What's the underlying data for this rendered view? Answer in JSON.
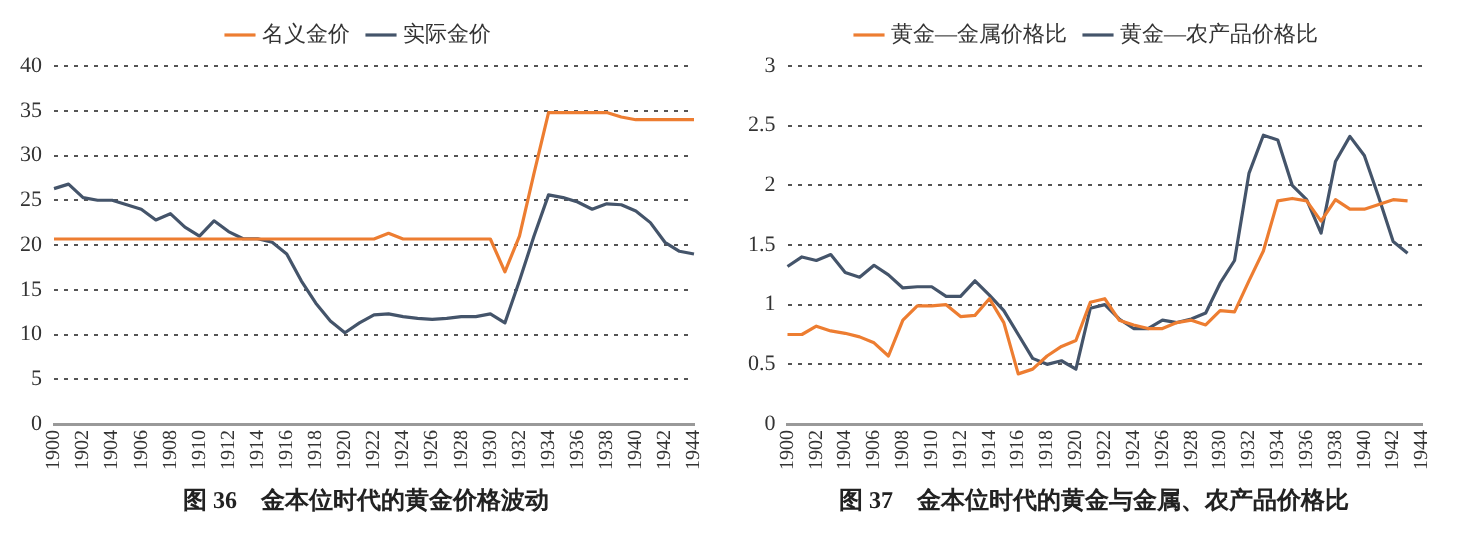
{
  "chart_data": [
    {
      "type": "line",
      "title": "图 36　金本位时代的黄金价格波动",
      "categories": [
        "1900",
        null,
        "1902",
        null,
        "1904",
        null,
        "1906",
        null,
        "1908",
        null,
        "1910",
        null,
        "1912",
        null,
        "1914",
        null,
        "1916",
        null,
        "1918",
        null,
        "1920",
        null,
        "1922",
        null,
        "1924",
        null,
        "1926",
        null,
        "1928",
        null,
        "1930",
        null,
        "1932",
        null,
        "1934",
        null,
        "1936",
        null,
        "1938",
        null,
        "1940",
        null,
        "1942",
        null,
        "1944"
      ],
      "series": [
        {
          "name": "名义金价",
          "color": "#ed7d31",
          "values": [
            20.67,
            20.67,
            20.67,
            20.67,
            20.67,
            20.67,
            20.67,
            20.67,
            20.67,
            20.67,
            20.67,
            20.67,
            20.67,
            20.67,
            20.67,
            20.67,
            20.67,
            20.67,
            20.67,
            20.67,
            20.67,
            20.67,
            20.67,
            21.3,
            20.67,
            20.67,
            20.67,
            20.67,
            20.67,
            20.67,
            20.67,
            17,
            21,
            28,
            34.8,
            34.8,
            34.8,
            34.8,
            34.8,
            34.3,
            34,
            34,
            34,
            34,
            34
          ]
        },
        {
          "name": "实际金价",
          "color": "#44546a",
          "values": [
            26.3,
            26.8,
            25.3,
            25,
            25,
            24.5,
            24,
            22.8,
            23.5,
            22,
            21,
            22.7,
            21.5,
            20.7,
            20.7,
            20.3,
            19,
            16,
            13.5,
            11.5,
            10.2,
            11.3,
            12.2,
            12.3,
            12,
            11.8,
            11.7,
            11.8,
            12,
            12,
            12.3,
            11.3,
            16,
            21,
            25.6,
            25.3,
            24.8,
            24,
            24.6,
            24.5,
            23.8,
            22.5,
            20.3,
            19.3,
            19
          ]
        }
      ],
      "ylim": [
        0,
        40
      ],
      "yticks": [
        0,
        5,
        10,
        15,
        20,
        25,
        30,
        35,
        40
      ],
      "grid": "y",
      "legend": "top",
      "marker": "none",
      "line_style": "solid"
    },
    {
      "type": "line",
      "title": "图 37　金本位时代的黄金与金属、农产品价格比",
      "categories": [
        "1900",
        null,
        "1902",
        null,
        "1904",
        null,
        "1906",
        null,
        "1908",
        null,
        "1910",
        null,
        "1912",
        null,
        "1914",
        null,
        "1916",
        null,
        "1918",
        null,
        "1920",
        null,
        "1922",
        null,
        "1924",
        null,
        "1926",
        null,
        "1928",
        null,
        "1930",
        null,
        "1932",
        null,
        "1934",
        null,
        "1936",
        null,
        "1938",
        null,
        "1940",
        null,
        "1942",
        null,
        "1944"
      ],
      "series": [
        {
          "name": "黄金—金属价格比",
          "color": "#ed7d31",
          "values": [
            0.75,
            0.75,
            0.82,
            0.78,
            0.76,
            0.73,
            0.68,
            0.57,
            0.87,
            0.99,
            0.99,
            1.0,
            0.9,
            0.91,
            1.05,
            0.85,
            0.42,
            0.46,
            0.57,
            0.65,
            0.7,
            1.02,
            1.05,
            0.87,
            0.83,
            0.8,
            0.8,
            0.85,
            0.87,
            0.83,
            0.95,
            0.94,
            1.2,
            1.45,
            1.87,
            1.89,
            1.87,
            1.7,
            1.88,
            1.8,
            1.8,
            1.84,
            1.88,
            1.87,
            null
          ]
        },
        {
          "name": "黄金—农产品价格比",
          "color": "#44546a",
          "values": [
            1.32,
            1.4,
            1.37,
            1.42,
            1.27,
            1.23,
            1.33,
            1.25,
            1.14,
            1.15,
            1.15,
            1.07,
            1.07,
            1.2,
            1.08,
            0.95,
            0.75,
            0.55,
            0.5,
            0.53,
            0.46,
            0.97,
            1.0,
            0.88,
            0.8,
            0.8,
            0.87,
            0.85,
            0.88,
            0.93,
            1.18,
            1.37,
            2.1,
            2.42,
            2.38,
            2.0,
            1.88,
            1.6,
            2.2,
            2.41,
            2.25,
            1.9,
            1.53,
            1.43,
            null
          ]
        }
      ],
      "ylim": [
        0,
        3
      ],
      "yticks": [
        0,
        0.5,
        1,
        1.5,
        2,
        2.5,
        3
      ],
      "grid": "y",
      "legend": "top",
      "marker": "none",
      "line_style": "solid"
    }
  ]
}
